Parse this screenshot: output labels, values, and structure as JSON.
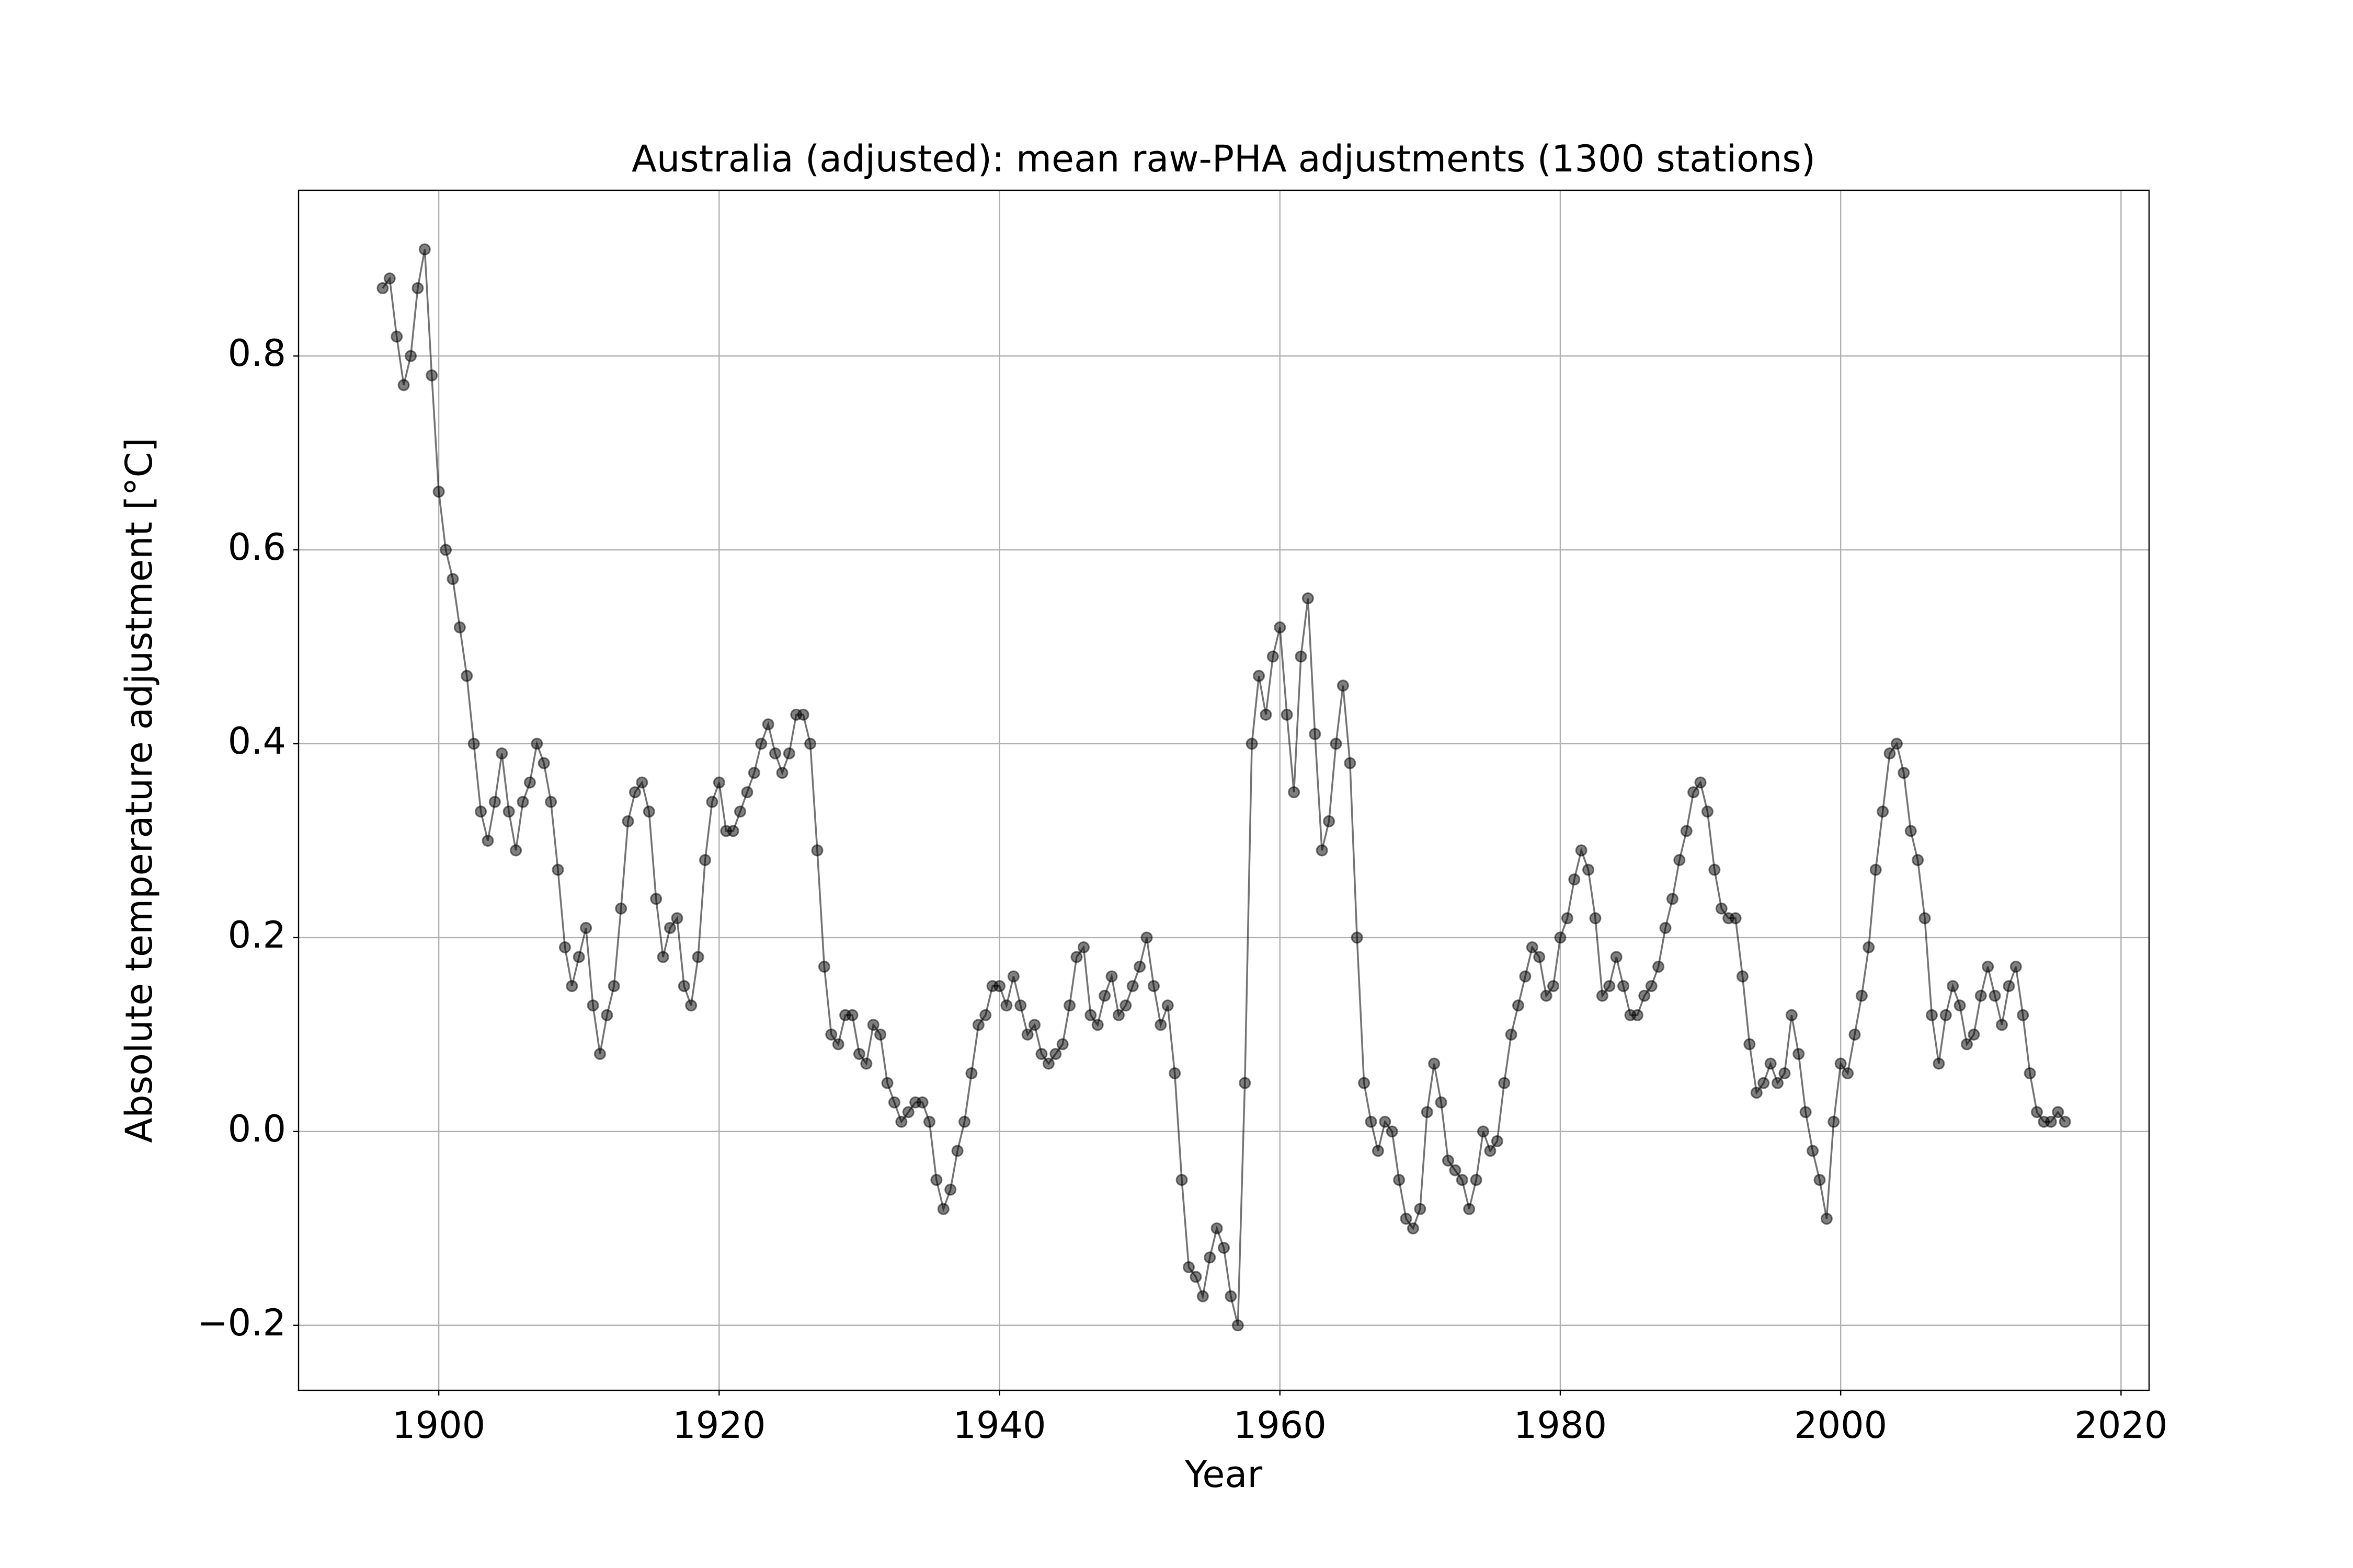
{
  "chart_data": {
    "type": "line",
    "title": "Australia (adjusted): mean raw-PHA adjustments (1300 stations)",
    "xlabel": "Year",
    "ylabel": "Absolute temperature adjustment [°C]",
    "color": "#000000",
    "grid": true,
    "xlim": [
      1890,
      2022
    ],
    "ylim": [
      -0.267,
      0.971
    ],
    "xticks": [
      1900,
      1920,
      1940,
      1960,
      1980,
      2000,
      2020
    ],
    "yticks": [
      {
        "value": -0.2,
        "label": "−0.2"
      },
      {
        "value": 0,
        "label": "0.0"
      },
      0.2,
      0.4,
      0.6,
      0.8
    ],
    "x": [
      1896,
      1896.5,
      1897,
      1897.5,
      1898,
      1898.5,
      1899,
      1899.5,
      1900,
      1900.5,
      1901,
      1901.5,
      1902,
      1902.5,
      1903,
      1903.5,
      1904,
      1904.5,
      1905,
      1905.5,
      1906,
      1906.5,
      1907,
      1907.5,
      1908,
      1908.5,
      1909,
      1909.5,
      1910,
      1910.5,
      1911,
      1911.5,
      1912,
      1912.5,
      1913,
      1913.5,
      1914,
      1914.5,
      1915,
      1915.5,
      1916,
      1916.5,
      1917,
      1917.5,
      1918,
      1918.5,
      1919,
      1919.5,
      1920,
      1920.5,
      1921,
      1921.5,
      1922,
      1922.5,
      1923,
      1923.5,
      1924,
      1924.5,
      1925,
      1925.5,
      1926,
      1926.5,
      1927,
      1927.5,
      1928,
      1928.5,
      1929,
      1929.5,
      1930,
      1930.5,
      1931,
      1931.5,
      1932,
      1932.5,
      1933,
      1933.5,
      1934,
      1934.5,
      1935,
      1935.5,
      1936,
      1936.5,
      1937,
      1937.5,
      1938,
      1938.5,
      1939,
      1939.5,
      1940,
      1940.5,
      1941,
      1941.5,
      1942,
      1942.5,
      1943,
      1943.5,
      1944,
      1944.5,
      1945,
      1945.5,
      1946,
      1946.5,
      1947,
      1947.5,
      1948,
      1948.5,
      1949,
      1949.5,
      1950,
      1950.5,
      1951,
      1951.5,
      1952,
      1952.5,
      1953,
      1953.5,
      1954,
      1954.5,
      1955,
      1955.5,
      1956,
      1956.5,
      1957,
      1957.5,
      1958,
      1958.5,
      1959,
      1959.5,
      1960,
      1960.5,
      1961,
      1961.5,
      1962,
      1962.5,
      1963,
      1963.5,
      1964,
      1964.5,
      1965,
      1965.5,
      1966,
      1966.5,
      1967,
      1967.5,
      1968,
      1968.5,
      1969,
      1969.5,
      1970,
      1970.5,
      1971,
      1971.5,
      1972,
      1972.5,
      1973,
      1973.5,
      1974,
      1974.5,
      1975,
      1975.5,
      1976,
      1976.5,
      1977,
      1977.5,
      1978,
      1978.5,
      1979,
      1979.5,
      1980,
      1980.5,
      1981,
      1981.5,
      1982,
      1982.5,
      1983,
      1983.5,
      1984,
      1984.5,
      1985,
      1985.5,
      1986,
      1986.5,
      1987,
      1987.5,
      1988,
      1988.5,
      1989,
      1989.5,
      1990,
      1990.5,
      1991,
      1991.5,
      1992,
      1992.5,
      1993,
      1993.5,
      1994,
      1994.5,
      1995,
      1995.5,
      1996,
      1996.5,
      1997,
      1997.5,
      1998,
      1998.5,
      1999,
      1999.5,
      2000,
      2000.5,
      2001,
      2001.5,
      2002,
      2002.5,
      2003,
      2003.5,
      2004,
      2004.5,
      2005,
      2005.5,
      2006,
      2006.5,
      2007,
      2007.5,
      2008,
      2008.5,
      2009,
      2009.5,
      2010,
      2010.5,
      2011,
      2011.5,
      2012,
      2012.5,
      2013,
      2013.5,
      2014,
      2014.5,
      2015,
      2015.5,
      2016
    ],
    "values": [
      0.87,
      0.88,
      0.82,
      0.77,
      0.8,
      0.87,
      0.91,
      0.78,
      0.66,
      0.6,
      0.57,
      0.52,
      0.47,
      0.4,
      0.33,
      0.3,
      0.34,
      0.39,
      0.33,
      0.29,
      0.34,
      0.36,
      0.4,
      0.38,
      0.34,
      0.27,
      0.19,
      0.15,
      0.18,
      0.21,
      0.13,
      0.08,
      0.12,
      0.15,
      0.23,
      0.32,
      0.35,
      0.36,
      0.33,
      0.24,
      0.18,
      0.21,
      0.22,
      0.15,
      0.13,
      0.18,
      0.28,
      0.34,
      0.36,
      0.31,
      0.31,
      0.33,
      0.35,
      0.37,
      0.4,
      0.42,
      0.39,
      0.37,
      0.39,
      0.43,
      0.43,
      0.4,
      0.29,
      0.17,
      0.1,
      0.09,
      0.12,
      0.12,
      0.08,
      0.07,
      0.11,
      0.1,
      0.05,
      0.03,
      0.01,
      0.02,
      0.03,
      0.03,
      0.01,
      -0.05,
      -0.08,
      -0.06,
      -0.02,
      0.01,
      0.06,
      0.11,
      0.12,
      0.15,
      0.15,
      0.13,
      0.16,
      0.13,
      0.1,
      0.11,
      0.08,
      0.07,
      0.08,
      0.09,
      0.13,
      0.18,
      0.19,
      0.12,
      0.11,
      0.14,
      0.16,
      0.12,
      0.13,
      0.15,
      0.17,
      0.2,
      0.15,
      0.11,
      0.13,
      0.06,
      -0.05,
      -0.14,
      -0.15,
      -0.17,
      -0.13,
      -0.1,
      -0.12,
      -0.17,
      -0.2,
      0.05,
      0.4,
      0.47,
      0.43,
      0.49,
      0.52,
      0.43,
      0.35,
      0.49,
      0.55,
      0.41,
      0.29,
      0.32,
      0.4,
      0.46,
      0.38,
      0.2,
      0.05,
      0.01,
      -0.02,
      0.01,
      0.0,
      -0.05,
      -0.09,
      -0.1,
      -0.08,
      0.02,
      0.07,
      0.03,
      -0.03,
      -0.04,
      -0.05,
      -0.08,
      -0.05,
      0.0,
      -0.02,
      -0.01,
      0.05,
      0.1,
      0.13,
      0.16,
      0.19,
      0.18,
      0.14,
      0.15,
      0.2,
      0.22,
      0.26,
      0.29,
      0.27,
      0.22,
      0.14,
      0.15,
      0.18,
      0.15,
      0.12,
      0.12,
      0.14,
      0.15,
      0.17,
      0.21,
      0.24,
      0.28,
      0.31,
      0.35,
      0.36,
      0.33,
      0.27,
      0.23,
      0.22,
      0.22,
      0.16,
      0.09,
      0.04,
      0.05,
      0.07,
      0.05,
      0.06,
      0.12,
      0.08,
      0.02,
      -0.02,
      -0.05,
      -0.09,
      0.01,
      0.07,
      0.06,
      0.1,
      0.14,
      0.19,
      0.27,
      0.33,
      0.39,
      0.4,
      0.37,
      0.31,
      0.28,
      0.22,
      0.12,
      0.07,
      0.12,
      0.15,
      0.13,
      0.09,
      0.1,
      0.14,
      0.17,
      0.14,
      0.11,
      0.15,
      0.17,
      0.12,
      0.06,
      0.02,
      0.01,
      0.01,
      0.02,
      0.01
    ]
  }
}
